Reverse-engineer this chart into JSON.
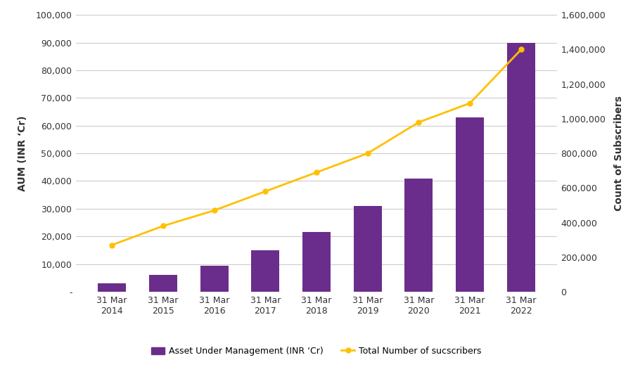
{
  "categories": [
    "31 Mar\n2014",
    "31 Mar\n2015",
    "31 Mar\n2016",
    "31 Mar\n2017",
    "31 Mar\n2018",
    "31 Mar\n2019",
    "31 Mar\n2020",
    "31 Mar\n2021",
    "31 Mar\n2022"
  ],
  "aum_values": [
    3000,
    6000,
    9500,
    15000,
    21500,
    31000,
    41000,
    63000,
    90000
  ],
  "subscribers": [
    270000,
    380000,
    470000,
    580000,
    690000,
    800000,
    980000,
    1090000,
    1400000
  ],
  "bar_color": "#6B2D8B",
  "line_color": "#FFC000",
  "ylabel_left": "AUM (INR ‘Cr)",
  "ylabel_right": "Count of Subscribers",
  "ylim_left": [
    0,
    100000
  ],
  "ylim_right": [
    0,
    1600000
  ],
  "yticks_left": [
    0,
    10000,
    20000,
    30000,
    40000,
    50000,
    60000,
    70000,
    80000,
    90000,
    100000
  ],
  "ytick_left_labels": [
    "-",
    "10,000",
    "20,000",
    "30,000",
    "40,000",
    "50,000",
    "60,000",
    "70,000",
    "80,000",
    "90,000",
    "100,000"
  ],
  "yticks_right": [
    0,
    200000,
    400000,
    600000,
    800000,
    1000000,
    1200000,
    1400000,
    1600000
  ],
  "ytick_right_labels": [
    "0",
    "200,000",
    "400,000",
    "600,000",
    "800,000",
    "1,000,000",
    "1,200,000",
    "1,400,000",
    "1,600,000"
  ],
  "legend_aum": "Asset Under Management (INR ‘Cr)",
  "legend_sub": "Total Number of sucscribers",
  "bg_color": "#FFFFFF",
  "grid_color": "#CCCCCC",
  "bar_width": 0.55
}
